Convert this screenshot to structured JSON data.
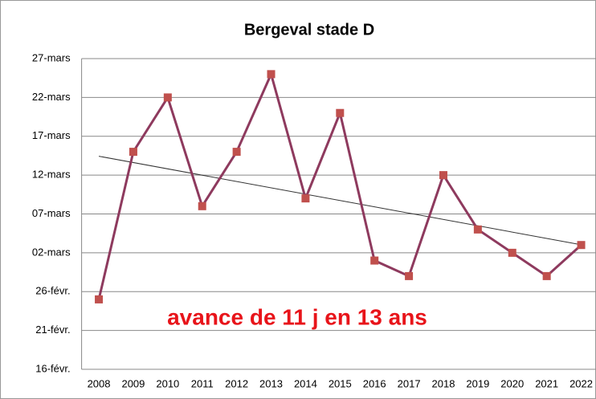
{
  "chart_data": {
    "type": "line",
    "title": "Bergeval stade D",
    "annotation": "avance de 11 j en 13 ans",
    "categories": [
      "2008",
      "2009",
      "2010",
      "2011",
      "2012",
      "2013",
      "2014",
      "2015",
      "2016",
      "2017",
      "2018",
      "2019",
      "2020",
      "2021",
      "2022"
    ],
    "series": [
      {
        "name": "Bergeval stade D",
        "color": "#8e3a5e",
        "marker_color": "#c0504d",
        "values": [
          56,
          75,
          82,
          68,
          75,
          85,
          69,
          80,
          61,
          59,
          72,
          65,
          62,
          59,
          63
        ]
      }
    ],
    "trendline": true,
    "ylim": [
      47,
      87
    ],
    "yticks": [
      {
        "value": 47,
        "label": "16-févr."
      },
      {
        "value": 52,
        "label": "21-févr."
      },
      {
        "value": 57,
        "label": "26-févr."
      },
      {
        "value": 62,
        "label": "02-mars"
      },
      {
        "value": 67,
        "label": "07-mars"
      },
      {
        "value": 72,
        "label": "12-mars"
      },
      {
        "value": 77,
        "label": "17-mars"
      },
      {
        "value": 82,
        "label": "22-mars"
      },
      {
        "value": 87,
        "label": "27-mars"
      }
    ],
    "grid": true
  }
}
